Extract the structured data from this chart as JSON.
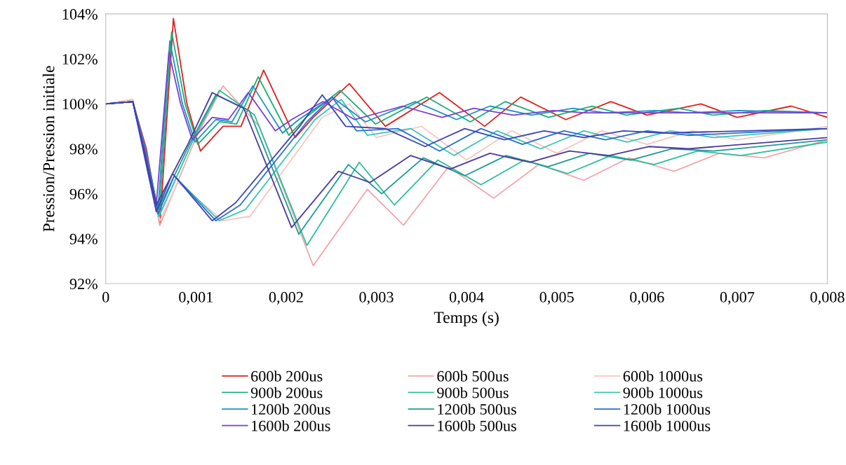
{
  "chart_data": {
    "type": "line",
    "xlabel": "Temps (s)",
    "ylabel": "Pression/Pression initiale",
    "xlim": [
      0,
      0.008
    ],
    "xticks": [
      {
        "value": 0,
        "label": "0"
      },
      {
        "value": 0.001,
        "label": "0,001"
      },
      {
        "value": 0.002,
        "label": "0,002"
      },
      {
        "value": 0.003,
        "label": "0,003"
      },
      {
        "value": 0.004,
        "label": "0,004"
      },
      {
        "value": 0.005,
        "label": "0,005"
      },
      {
        "value": 0.006,
        "label": "0,006"
      },
      {
        "value": 0.007,
        "label": "0,007"
      },
      {
        "value": 0.008,
        "label": "0,008"
      }
    ],
    "ylim": [
      92,
      104
    ],
    "yticks": [
      {
        "value": 92,
        "label": "92%"
      },
      {
        "value": 94,
        "label": "94%"
      },
      {
        "value": 96,
        "label": "96%"
      },
      {
        "value": 98,
        "label": "98%"
      },
      {
        "value": 100,
        "label": "100%"
      },
      {
        "value": 102,
        "label": "102%"
      },
      {
        "value": 104,
        "label": "104%"
      }
    ],
    "grid": false,
    "legend": "bottom",
    "marker": "none",
    "line_style": "solid",
    "series": [
      {
        "name": "600b 200us",
        "color": "#e0201f",
        "x": [
          0,
          0.0003,
          0.00045,
          0.0006,
          0.00075,
          0.0009,
          0.00105,
          0.0013,
          0.0015,
          0.00175,
          0.0021,
          0.0023,
          0.0027,
          0.0031,
          0.0037,
          0.0042,
          0.0046,
          0.0051,
          0.0056,
          0.006,
          0.0066,
          0.007,
          0.0076,
          0.008
        ],
        "values": [
          100,
          100.1,
          98,
          94.6,
          103.8,
          100,
          97.9,
          99,
          99,
          101.5,
          98.5,
          99.4,
          100.9,
          99,
          100.5,
          99,
          100.3,
          99.3,
          100.1,
          99.5,
          100,
          99.4,
          99.9,
          99.4
        ]
      },
      {
        "name": "600b 500us",
        "color": "#f2a8ad",
        "x": [
          0,
          0.0003,
          0.0006,
          0.001,
          0.0013,
          0.0017,
          0.0023,
          0.0029,
          0.0033,
          0.0038,
          0.0043,
          0.0048,
          0.0053,
          0.0058,
          0.0063,
          0.0068,
          0.0073,
          0.008
        ],
        "values": [
          100,
          100.2,
          94.6,
          98.5,
          100.8,
          99,
          92.8,
          96.2,
          94.6,
          97.2,
          95.8,
          97.3,
          96.6,
          97.6,
          97,
          97.8,
          97.6,
          98.4
        ]
      },
      {
        "name": "600b 1000us",
        "color": "#f6c6c0",
        "x": [
          0,
          0.0003,
          0.0006,
          0.0008,
          0.0013,
          0.0016,
          0.0024,
          0.0027,
          0.003,
          0.0035,
          0.004,
          0.0045,
          0.005,
          0.0055,
          0.006,
          0.0065,
          0.007,
          0.008
        ],
        "values": [
          100,
          100.2,
          94.8,
          96.5,
          94.8,
          95,
          99.4,
          100,
          98.5,
          99,
          97.5,
          98.8,
          97.8,
          98.8,
          98.2,
          98.8,
          98.4,
          99
        ]
      },
      {
        "name": "900b 200us",
        "color": "#19b07a",
        "x": [
          0,
          0.0003,
          0.00044,
          0.00059,
          0.00073,
          0.00088,
          0.00102,
          0.00126,
          0.00145,
          0.00169,
          0.00203,
          0.00222,
          0.0026,
          0.00299,
          0.00356,
          0.00404,
          0.00443,
          0.00491,
          0.00539,
          0.00577,
          0.00635,
          0.00673,
          0.00731,
          0.008
        ],
        "values": [
          100,
          100.1,
          98,
          95,
          103.2,
          100,
          98.2,
          99.2,
          99.1,
          101.2,
          98.6,
          99.4,
          100.6,
          99.1,
          100.3,
          99.2,
          100.1,
          99.4,
          99.9,
          99.5,
          99.8,
          99.5,
          99.7,
          99.6
        ]
      },
      {
        "name": "900b 500us",
        "color": "#2cc09a",
        "x": [
          0,
          0.0003,
          0.00059,
          0.00097,
          0.00126,
          0.00165,
          0.00223,
          0.00281,
          0.0032,
          0.00368,
          0.00416,
          0.00464,
          0.00512,
          0.0056,
          0.00608,
          0.00656,
          0.00704,
          0.008
        ],
        "values": [
          100,
          100.1,
          95,
          98.4,
          100.6,
          99.5,
          93.7,
          97.4,
          95.5,
          97.5,
          96.4,
          97.5,
          96.9,
          97.7,
          97.3,
          97.9,
          97.7,
          98.3
        ]
      },
      {
        "name": "900b 1000us",
        "color": "#3cc6b4",
        "x": [
          0,
          0.0003,
          0.00059,
          0.00078,
          0.00126,
          0.00155,
          0.00232,
          0.00261,
          0.0029,
          0.00338,
          0.00386,
          0.00434,
          0.00482,
          0.0053,
          0.00578,
          0.00626,
          0.00674,
          0.008
        ],
        "values": [
          100,
          100.1,
          95,
          96.7,
          94.8,
          95.3,
          99.3,
          100.2,
          98.6,
          98.9,
          97.7,
          98.8,
          98,
          98.8,
          98.3,
          98.8,
          98.5,
          98.9
        ]
      },
      {
        "name": "1200b 200us",
        "color": "#1b92c0",
        "x": [
          0,
          0.0003,
          0.00044,
          0.00058,
          0.00071,
          0.00085,
          0.00099,
          0.00122,
          0.0014,
          0.00163,
          0.00196,
          0.00214,
          0.00251,
          0.00288,
          0.00343,
          0.00389,
          0.00426,
          0.00472,
          0.00518,
          0.00554,
          0.00609,
          0.00646,
          0.00702,
          0.008
        ],
        "values": [
          100,
          100.1,
          98,
          95.3,
          102.8,
          100,
          98.3,
          99.3,
          99.2,
          100.8,
          98.7,
          99.3,
          100.3,
          99.2,
          100.1,
          99.3,
          99.9,
          99.5,
          99.8,
          99.6,
          99.7,
          99.6,
          99.7,
          99.6
        ]
      },
      {
        "name": "1200b 500us",
        "color": "#1f9a94",
        "x": [
          0,
          0.0003,
          0.00058,
          0.00094,
          0.00122,
          0.00159,
          0.00214,
          0.00269,
          0.00306,
          0.00352,
          0.00398,
          0.00444,
          0.0049,
          0.00536,
          0.00582,
          0.00628,
          0.00674,
          0.008
        ],
        "values": [
          100,
          100.1,
          95.3,
          98.3,
          100.4,
          99.7,
          94.2,
          97.3,
          96,
          97.6,
          96.8,
          97.7,
          97.2,
          97.8,
          97.5,
          98,
          97.9,
          98.4
        ]
      },
      {
        "name": "1200b 1000us",
        "color": "#2a6fd0",
        "x": [
          0,
          0.0003,
          0.00058,
          0.00076,
          0.00122,
          0.00149,
          0.00223,
          0.00251,
          0.00278,
          0.00324,
          0.0037,
          0.00416,
          0.00462,
          0.00508,
          0.00554,
          0.006,
          0.00646,
          0.008
        ],
        "values": [
          100,
          100.1,
          95.1,
          96.8,
          94.8,
          95.5,
          99.2,
          100.3,
          98.8,
          98.9,
          97.9,
          98.9,
          98.2,
          98.8,
          98.4,
          98.8,
          98.6,
          98.9
        ]
      },
      {
        "name": "1600b 200us",
        "color": "#7b3fd2",
        "x": [
          0,
          0.0003,
          0.00043,
          0.00056,
          0.0007,
          0.00083,
          0.00096,
          0.00118,
          0.00136,
          0.00158,
          0.00188,
          0.00206,
          0.00241,
          0.00276,
          0.00329,
          0.00373,
          0.00408,
          0.00452,
          0.00496,
          0.00532,
          0.00584,
          0.0062,
          0.00672,
          0.008
        ],
        "values": [
          100,
          100.1,
          98,
          95.5,
          102.3,
          100,
          98.4,
          99.4,
          99.3,
          100.5,
          98.8,
          99.3,
          100.1,
          99.3,
          99.9,
          99.4,
          99.8,
          99.5,
          99.7,
          99.6,
          99.6,
          99.6,
          99.6,
          99.6
        ]
      },
      {
        "name": "1600b 500us",
        "color": "#4b3a9c",
        "x": [
          0,
          0.0003,
          0.00056,
          0.00091,
          0.00118,
          0.00153,
          0.00206,
          0.00258,
          0.00293,
          0.00338,
          0.00382,
          0.00426,
          0.0047,
          0.00514,
          0.00558,
          0.00602,
          0.00646,
          0.008
        ],
        "values": [
          100,
          100.1,
          95.5,
          98.2,
          100.5,
          99.8,
          94.5,
          97,
          96.5,
          97.7,
          97.1,
          97.8,
          97.4,
          97.9,
          97.7,
          98.1,
          98,
          98.5
        ]
      },
      {
        "name": "1600b 1000us",
        "color": "#3b44b4",
        "x": [
          0,
          0.0003,
          0.00056,
          0.00074,
          0.00118,
          0.00144,
          0.00215,
          0.0024,
          0.00266,
          0.0031,
          0.00354,
          0.00398,
          0.00442,
          0.00486,
          0.0053,
          0.00574,
          0.00618,
          0.008
        ],
        "values": [
          100,
          100.1,
          95.2,
          96.9,
          94.8,
          95.6,
          99,
          100.4,
          99,
          98.9,
          98.1,
          98.9,
          98.4,
          98.8,
          98.5,
          98.8,
          98.7,
          98.9
        ]
      }
    ]
  }
}
